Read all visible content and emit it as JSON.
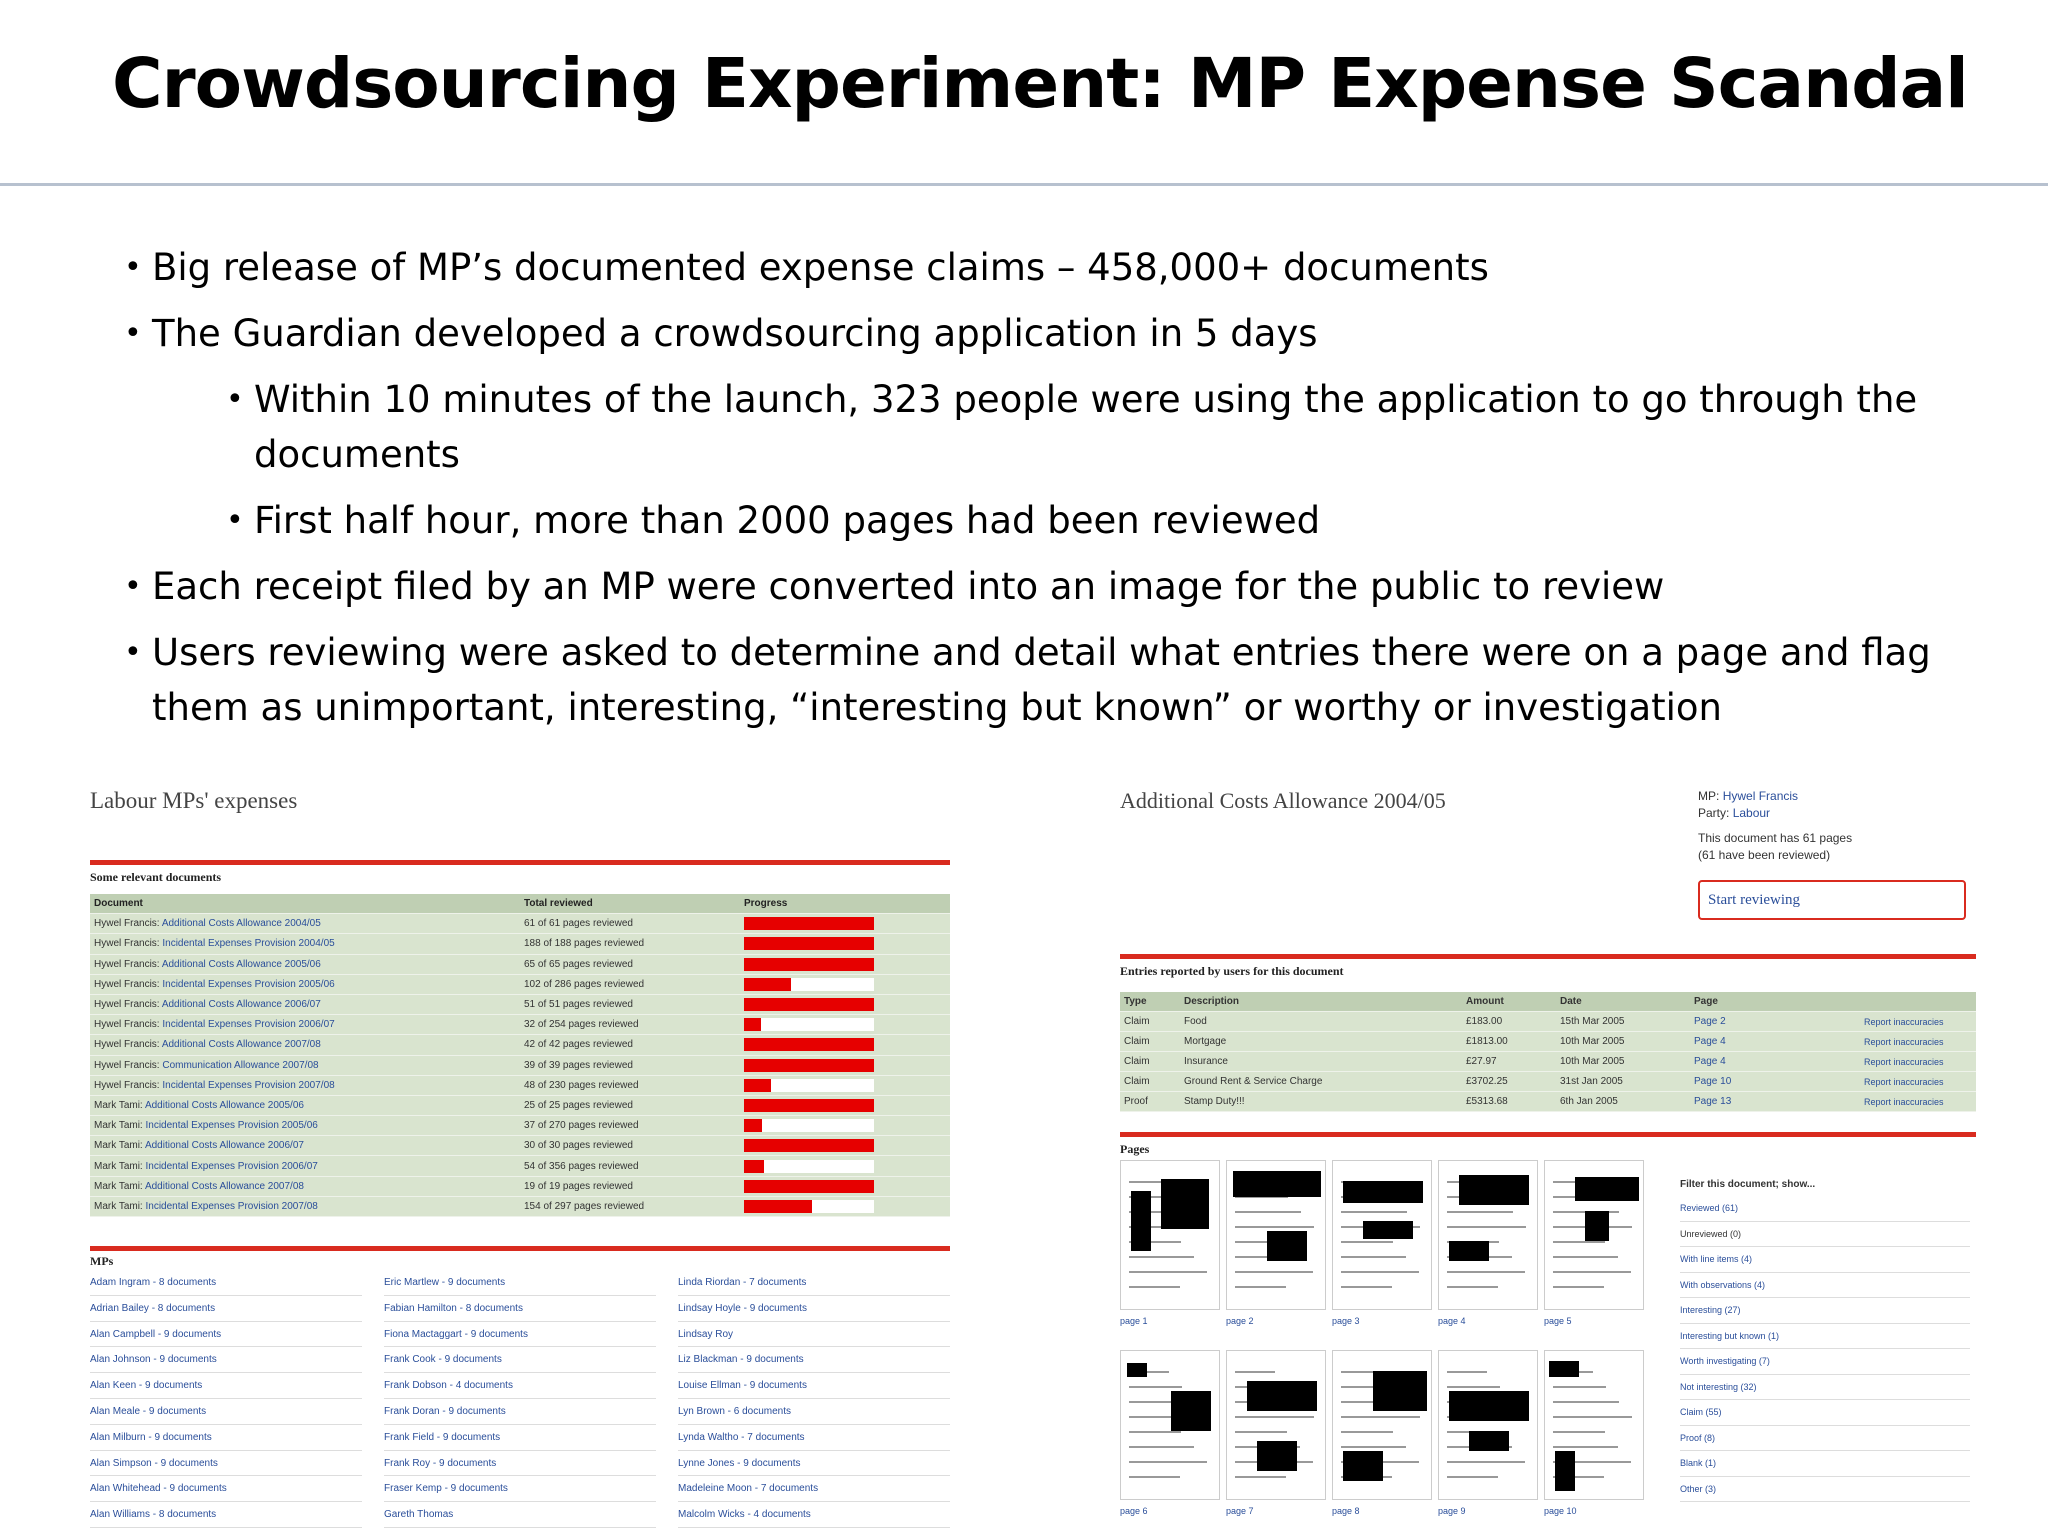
{
  "slide": {
    "title": "Crowdsourcing Experiment: MP Expense Scandal",
    "bullets": [
      {
        "level": 1,
        "text": "Big release of MP’s documented expense claims – 458,000+ documents"
      },
      {
        "level": 1,
        "text": "The Guardian developed a crowdsourcing application in 5 days"
      },
      {
        "level": 2,
        "text": "Within 10 minutes of the launch, 323 people were using the application to go through the documents"
      },
      {
        "level": 2,
        "text": "First half hour, more than 2000 pages had been reviewed"
      },
      {
        "level": 1,
        "text": "Each receipt filed by an MP were converted into an image for the public to review"
      },
      {
        "level": 1,
        "text": "Users reviewing were asked to determine and detail what entries there were on a page and flag them as unimportant, interesting, “interesting but known” or worthy or investigation"
      }
    ],
    "bullet_glyph": "•"
  },
  "screenshot_left": {
    "title": "Labour MPs' expenses",
    "documents_heading": "Some relevant documents",
    "columns": [
      "Document",
      "Total reviewed",
      "Progress"
    ],
    "rows": [
      {
        "mp": "Hywel Francis:",
        "doc": "Additional Costs Allowance 2004/05",
        "total": "61 of 61 pages reviewed",
        "progress": 1.0
      },
      {
        "mp": "Hywel Francis:",
        "doc": "Incidental Expenses Provision 2004/05",
        "total": "188 of 188 pages reviewed",
        "progress": 1.0
      },
      {
        "mp": "Hywel Francis:",
        "doc": "Additional Costs Allowance 2005/06",
        "total": "65 of 65 pages reviewed",
        "progress": 1.0
      },
      {
        "mp": "Hywel Francis:",
        "doc": "Incidental Expenses Provision 2005/06",
        "total": "102 of 286 pages reviewed",
        "progress": 0.36
      },
      {
        "mp": "Hywel Francis:",
        "doc": "Additional Costs Allowance 2006/07",
        "total": "51 of 51 pages reviewed",
        "progress": 1.0
      },
      {
        "mp": "Hywel Francis:",
        "doc": "Incidental Expenses Provision 2006/07",
        "total": "32 of 254 pages reviewed",
        "progress": 0.13
      },
      {
        "mp": "Hywel Francis:",
        "doc": "Additional Costs Allowance 2007/08",
        "total": "42 of 42 pages reviewed",
        "progress": 1.0
      },
      {
        "mp": "Hywel Francis:",
        "doc": "Communication Allowance 2007/08",
        "total": "39 of 39 pages reviewed",
        "progress": 1.0
      },
      {
        "mp": "Hywel Francis:",
        "doc": "Incidental Expenses Provision 2007/08",
        "total": "48 of 230 pages reviewed",
        "progress": 0.21
      },
      {
        "mp": "Mark Tami:",
        "doc": "Additional Costs Allowance 2005/06",
        "total": "25 of 25 pages reviewed",
        "progress": 1.0
      },
      {
        "mp": "Mark Tami:",
        "doc": "Incidental Expenses Provision 2005/06",
        "total": "37 of 270 pages reviewed",
        "progress": 0.14
      },
      {
        "mp": "Mark Tami:",
        "doc": "Additional Costs Allowance 2006/07",
        "total": "30 of 30 pages reviewed",
        "progress": 1.0
      },
      {
        "mp": "Mark Tami:",
        "doc": "Incidental Expenses Provision 2006/07",
        "total": "54 of 356 pages reviewed",
        "progress": 0.15
      },
      {
        "mp": "Mark Tami:",
        "doc": "Additional Costs Allowance 2007/08",
        "total": "19 of 19 pages reviewed",
        "progress": 1.0
      },
      {
        "mp": "Mark Tami:",
        "doc": "Incidental Expenses Provision 2007/08",
        "total": "154 of 297 pages reviewed",
        "progress": 0.52
      }
    ],
    "mps_heading": "MPs",
    "mp_columns": [
      [
        "Adam Ingram - 8 documents",
        "Adrian Bailey - 8 documents",
        "Alan Campbell - 9 documents",
        "Alan Johnson - 9 documents",
        "Alan Keen - 9 documents",
        "Alan Meale - 9 documents",
        "Alan Milburn - 9 documents",
        "Alan Simpson - 9 documents",
        "Alan Whitehead - 9 documents",
        "Alan Williams - 8 documents"
      ],
      [
        "Eric Martlew - 9 documents",
        "Fabian Hamilton - 8 documents",
        "Fiona Mactaggart - 9 documents",
        "Frank Cook - 9 documents",
        "Frank Dobson - 4 documents",
        "Frank Doran - 9 documents",
        "Frank Field - 9 documents",
        "Frank Roy - 9 documents",
        "Fraser Kemp - 9 documents",
        "Gareth Thomas"
      ],
      [
        "Linda Riordan - 7 documents",
        "Lindsay Hoyle - 9 documents",
        "Lindsay Roy",
        "Liz Blackman - 9 documents",
        "Louise Ellman - 9 documents",
        "Lyn Brown - 6 documents",
        "Lynda Waltho - 7 documents",
        "Lynne Jones - 9 documents",
        "Madeleine Moon - 7 documents",
        "Malcolm Wicks - 4 documents"
      ]
    ],
    "accent_color": "#d92b1f",
    "progress_color": "#e60000"
  },
  "screenshot_right": {
    "title": "Additional Costs Allowance 2004/05",
    "mp_label": "MP:",
    "mp_name": "Hywel Francis",
    "party_label": "Party:",
    "party_name": "Labour",
    "doc_info_1": "This document has 61 pages",
    "doc_info_2": "(61 have been reviewed)",
    "start_button": "Start reviewing",
    "entries_heading": "Entries reported by users for this document",
    "entry_columns": [
      "Type",
      "Description",
      "Amount",
      "Date",
      "Page"
    ],
    "entries": [
      {
        "type": "Claim",
        "desc": "Food",
        "amount": "£183.00",
        "date": "15th Mar 2005",
        "page": "Page 2",
        "report": "Report inaccuracies"
      },
      {
        "type": "Claim",
        "desc": "Mortgage",
        "amount": "£1813.00",
        "date": "10th Mar 2005",
        "page": "Page 4",
        "report": "Report inaccuracies"
      },
      {
        "type": "Claim",
        "desc": "Insurance",
        "amount": "£27.97",
        "date": "10th Mar 2005",
        "page": "Page 4",
        "report": "Report inaccuracies"
      },
      {
        "type": "Claim",
        "desc": "Ground Rent & Service Charge",
        "amount": "£3702.25",
        "date": "31st Jan 2005",
        "page": "Page 10",
        "report": "Report inaccuracies"
      },
      {
        "type": "Proof",
        "desc": "Stamp Duty!!!",
        "amount": "£5313.68",
        "date": "6th Jan 2005",
        "page": "Page 13",
        "report": "Report inaccuracies"
      }
    ],
    "pages_heading": "Pages",
    "page_captions": [
      "page 1",
      "page 2",
      "page 3",
      "page 4",
      "page 5",
      "page 6",
      "page 7",
      "page 8",
      "page 9",
      "page 10"
    ],
    "filter_heading": "Filter this document; show...",
    "filters": [
      {
        "label": "Reviewed (61)",
        "link": true
      },
      {
        "label": "Unreviewed (0)",
        "link": false
      },
      {
        "label": "With line items (4)",
        "link": true
      },
      {
        "label": "With observations (4)",
        "link": true
      },
      {
        "label": "Interesting (27)",
        "link": true
      },
      {
        "label": "Interesting but known (1)",
        "link": true
      },
      {
        "label": "Worth investigating (7)",
        "link": true
      },
      {
        "label": "Not interesting (32)",
        "link": true
      },
      {
        "label": "Claim (55)",
        "link": true
      },
      {
        "label": "Proof (8)",
        "link": true
      },
      {
        "label": "Blank (1)",
        "link": true
      },
      {
        "label": "Other (3)",
        "link": true
      }
    ]
  }
}
